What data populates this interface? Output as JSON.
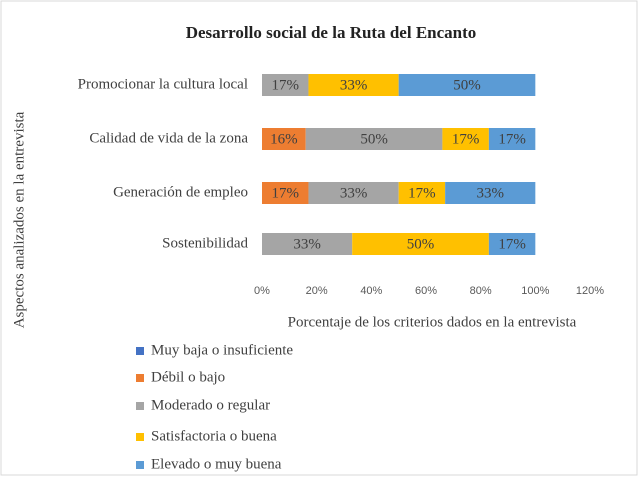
{
  "chart_data": {
    "type": "stacked-barh",
    "title": "Desarrollo  social de la Ruta del Encanto",
    "ylabel": "Aspectos analizados en la entrevista",
    "xlabel": "Porcentaje de los criterios dados en la entrevista",
    "categories": [
      "Promocionar la cultura local",
      "Calidad de vida de la zona",
      "Generación de empleo",
      "Sostenibilidad"
    ],
    "series": [
      {
        "name": "Muy baja o insuficiente",
        "color": "#4472c4",
        "values": [
          0,
          0,
          0,
          0
        ],
        "value_labels": [
          null,
          null,
          null,
          null
        ]
      },
      {
        "name": "Débil o bajo",
        "color": "#ed7d31",
        "values": [
          0,
          16,
          17,
          0
        ],
        "value_labels": [
          null,
          "16%",
          "17%",
          null
        ]
      },
      {
        "name": "Moderado o regular",
        "color": "#a5a5a5",
        "values": [
          17,
          50,
          33,
          33
        ],
        "value_labels": [
          "17%",
          "50%",
          "33%",
          "33%"
        ]
      },
      {
        "name": "Satisfactoria o buena",
        "color": "#ffc000",
        "values": [
          33,
          17,
          17,
          50
        ],
        "value_labels": [
          "33%",
          "17%",
          "17%",
          "50%"
        ]
      },
      {
        "name": "Elevado o muy buena",
        "color": "#5b9bd5",
        "values": [
          50,
          17,
          33,
          17
        ],
        "value_labels": [
          "50%",
          "17%",
          "33%",
          "17%"
        ]
      }
    ],
    "xlim": [
      0,
      120
    ],
    "xticks": [
      {
        "value": 0,
        "label": "0%"
      },
      {
        "value": 20,
        "label": "20%"
      },
      {
        "value": 40,
        "label": "40%"
      },
      {
        "value": 60,
        "label": "60%"
      },
      {
        "value": 80,
        "label": "80%"
      },
      {
        "value": 100,
        "label": "100%"
      },
      {
        "value": 120,
        "label": "120%"
      }
    ],
    "legend": "bottom"
  }
}
